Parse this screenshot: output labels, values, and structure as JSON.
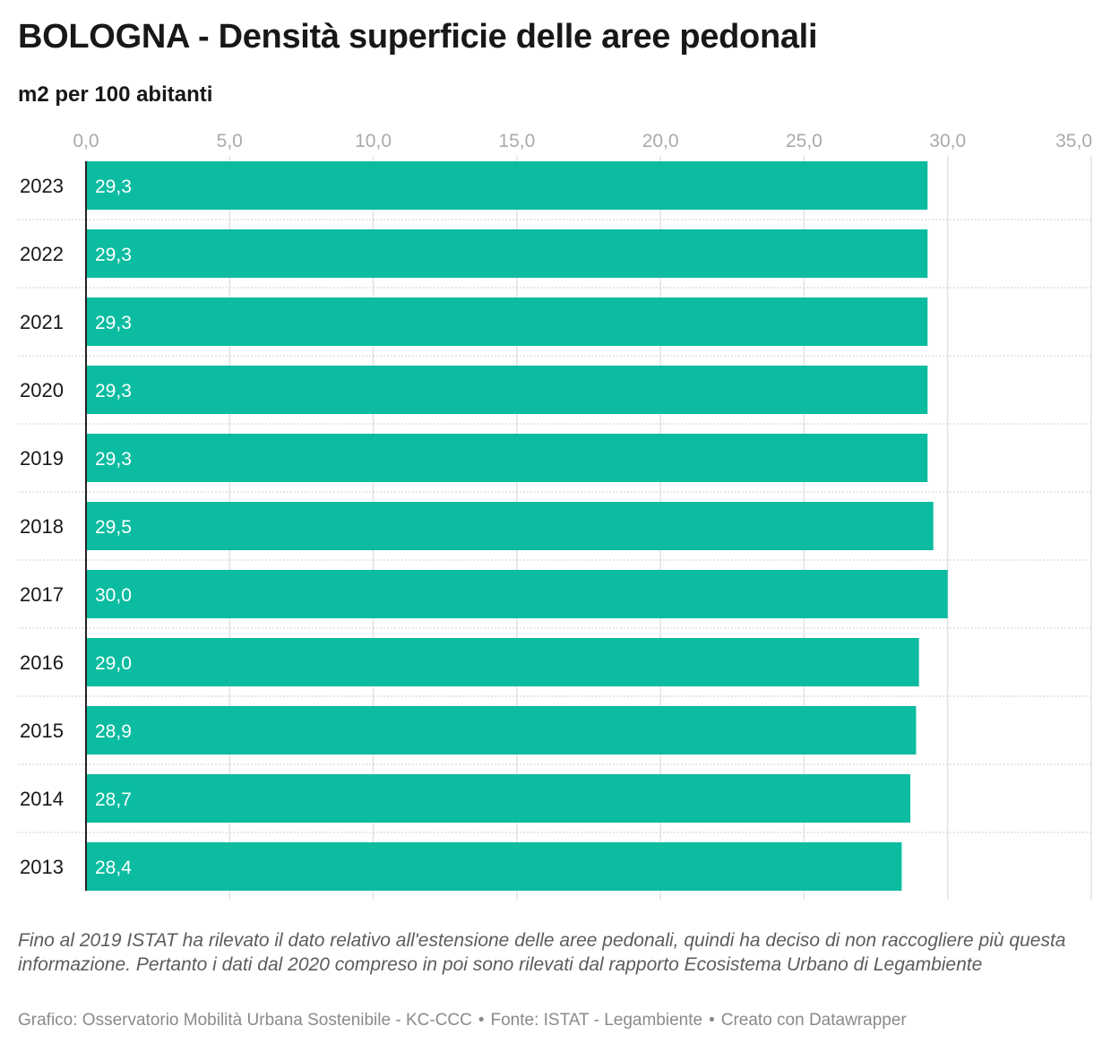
{
  "title": "BOLOGNA - Densità superficie delle aree pedonali",
  "subtitle": "m2 per 100 abitanti",
  "notes": "Fino al 2019 ISTAT ha rilevato il dato relativo all'estensione delle aree pedonali, quindi ha deciso di non raccogliere più questa informazione. Pertanto i dati dal 2020 compreso in poi sono rilevati dal rapporto Ecosistema Urbano di Legambiente",
  "footer": {
    "credit": "Grafico: Osservatorio Mobilità Urbana Sostenibile - KC-CCC",
    "source": "Fonte: ISTAT - Legambiente",
    "tool": "Creato con Datawrapper",
    "separator": "•"
  },
  "colors": {
    "bar": "#0bbca1",
    "bar_label": "#ffffff",
    "grid": "#e2e2e2",
    "row_separator": "#cccccc",
    "axis_baseline": "#222222",
    "tick_label": "#aaaaaa"
  },
  "chart_data": {
    "type": "bar",
    "orientation": "horizontal",
    "categories": [
      "2023",
      "2022",
      "2021",
      "2020",
      "2019",
      "2018",
      "2017",
      "2016",
      "2015",
      "2014",
      "2013"
    ],
    "values": [
      29.3,
      29.3,
      29.3,
      29.3,
      29.3,
      29.5,
      30.0,
      29.0,
      28.9,
      28.7,
      28.4
    ],
    "value_labels": [
      "29,3",
      "29,3",
      "29,3",
      "29,3",
      "29,3",
      "29,5",
      "30,0",
      "29,0",
      "28,9",
      "28,7",
      "28,4"
    ],
    "xlim": [
      0,
      35
    ],
    "xticks": [
      0,
      5,
      10,
      15,
      20,
      25,
      30,
      35
    ],
    "xtick_labels": [
      "0,0",
      "5,0",
      "10,0",
      "15,0",
      "20,0",
      "25,0",
      "30,0",
      "35,0"
    ],
    "tick_position": "top",
    "grid": true,
    "legend": "none"
  }
}
